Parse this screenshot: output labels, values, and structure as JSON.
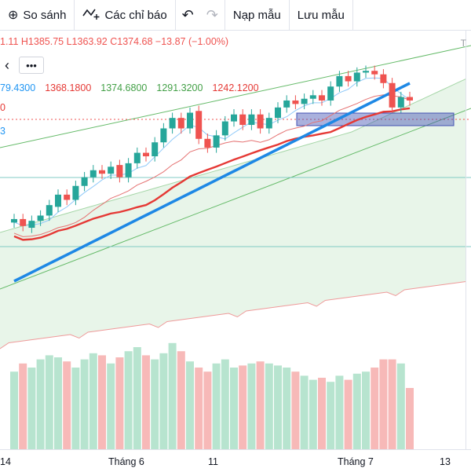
{
  "toolbar": {
    "compare_label": "So sánh",
    "indicators_label": "Các chỉ báo",
    "load_template_label": "Nạp mẫu",
    "save_template_label": "Lưu mẫu"
  },
  "ohlc_legend": {
    "open_fragment": "1.11",
    "high_label": "H1385.75",
    "low_label": "L1363.92",
    "close_label": "C1374.68",
    "change_label": "−13.87 (−1.00%)"
  },
  "truncated_right_text": "T",
  "indicator_legend": {
    "v1": "79.4300",
    "v2": "1368.1800",
    "v3": "1374.6800",
    "v4": "1291.3200",
    "v5": "1242.1200"
  },
  "side_labels": {
    "red_fragment": "0",
    "blue_fragment": "3"
  },
  "controls": {
    "collapse_glyph": "‹",
    "more_glyph": "•••"
  },
  "colors": {
    "up": "#26a69a",
    "down": "#ef5350",
    "ma_red": "#e53935",
    "ma_blue": "#1e88e5",
    "volume_up": "#b7e4cf",
    "volume_down": "#f7b9b8",
    "cloud": "#e8f5e9",
    "zone": "#4351b3"
  },
  "x_axis": {
    "labels": [
      "14",
      "Tháng 6",
      "11",
      "Tháng 7",
      "13"
    ]
  },
  "chart_data": {
    "type": "candlestick",
    "candles": [
      {
        "o": 12,
        "c": 14
      },
      {
        "o": 14,
        "c": 10
      },
      {
        "o": 9,
        "c": 13
      },
      {
        "o": 13,
        "c": 16
      },
      {
        "o": 16,
        "c": 22
      },
      {
        "o": 21,
        "c": 28
      },
      {
        "o": 28,
        "c": 25
      },
      {
        "o": 25,
        "c": 33
      },
      {
        "o": 33,
        "c": 38
      },
      {
        "o": 38,
        "c": 42
      },
      {
        "o": 42,
        "c": 40
      },
      {
        "o": 40,
        "c": 44
      },
      {
        "o": 45,
        "c": 38
      },
      {
        "o": 38,
        "c": 46
      },
      {
        "o": 46,
        "c": 52
      },
      {
        "o": 52,
        "c": 50
      },
      {
        "o": 50,
        "c": 58
      },
      {
        "o": 58,
        "c": 66
      },
      {
        "o": 66,
        "c": 72
      },
      {
        "o": 72,
        "c": 66
      },
      {
        "o": 66,
        "c": 75
      },
      {
        "o": 76,
        "c": 60
      },
      {
        "o": 60,
        "c": 55
      },
      {
        "o": 55,
        "c": 62
      },
      {
        "o": 62,
        "c": 70
      },
      {
        "o": 70,
        "c": 74
      },
      {
        "o": 74,
        "c": 68
      },
      {
        "o": 68,
        "c": 74
      },
      {
        "o": 74,
        "c": 66
      },
      {
        "o": 66,
        "c": 72
      },
      {
        "o": 72,
        "c": 78
      },
      {
        "o": 78,
        "c": 82
      },
      {
        "o": 82,
        "c": 80
      },
      {
        "o": 80,
        "c": 83
      },
      {
        "o": 83,
        "c": 85
      },
      {
        "o": 85,
        "c": 82
      },
      {
        "o": 82,
        "c": 90
      },
      {
        "o": 90,
        "c": 96
      },
      {
        "o": 96,
        "c": 93
      },
      {
        "o": 93,
        "c": 98
      },
      {
        "o": 98,
        "c": 99
      },
      {
        "o": 99,
        "c": 97
      },
      {
        "o": 97,
        "c": 92
      },
      {
        "o": 92,
        "c": 78
      },
      {
        "o": 78,
        "c": 84
      },
      {
        "o": 84,
        "c": 82
      }
    ],
    "volume": [
      38,
      42,
      40,
      44,
      46,
      45,
      43,
      40,
      44,
      47,
      46,
      42,
      45,
      48,
      50,
      46,
      44,
      47,
      52,
      48,
      43,
      40,
      38,
      42,
      44,
      40,
      41,
      42,
      43,
      42,
      41,
      40,
      38,
      36,
      34,
      35,
      33,
      36,
      34,
      37,
      38,
      40,
      44,
      44,
      42,
      30
    ]
  }
}
